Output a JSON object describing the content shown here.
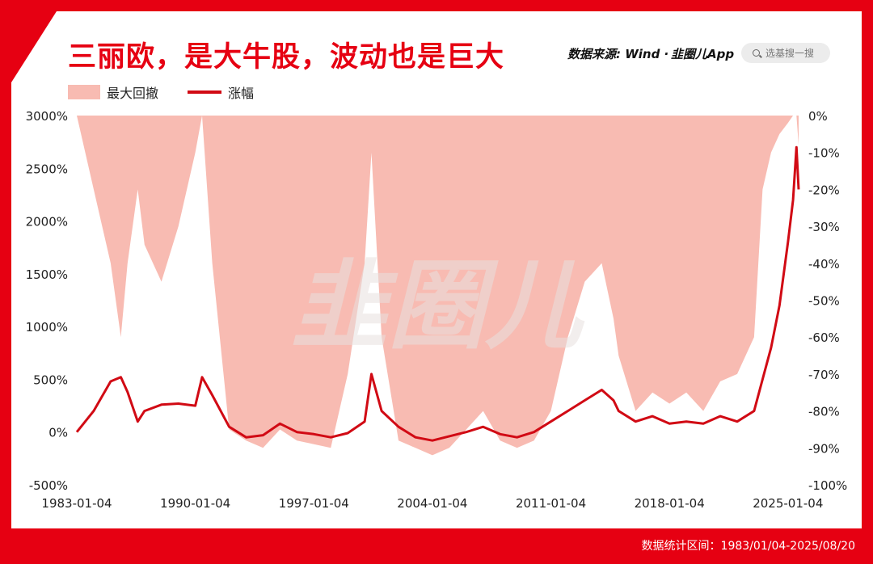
{
  "header": {
    "title": "三丽欧，是大牛股，波动也是巨大",
    "source": "数据来源: Wind ·",
    "brand": "韭圈儿App",
    "search_placeholder": "选基搜一搜"
  },
  "footer": {
    "range_text": "数据统计区间：1983/01/04-2025/08/20"
  },
  "watermark": "韭圈儿",
  "colors": {
    "brand_red": "#E60012",
    "line": "#D10A14",
    "area": "#F8BBB2",
    "watermark": "#E8E0DE"
  },
  "icons": {
    "search": "search-icon"
  },
  "chart_data": {
    "type": "line",
    "legend": [
      "最大回撤",
      "涨幅"
    ],
    "legend_position": "top-left",
    "grid": false,
    "x_ticks": [
      "1983-01-04",
      "1990-01-04",
      "1997-01-04",
      "2004-01-04",
      "2011-01-04",
      "2018-01-04",
      "2025-01-04"
    ],
    "y_left": {
      "ticks": [
        "3000%",
        "2500%",
        "2000%",
        "1500%",
        "1000%",
        "500%",
        "0%",
        "-500%"
      ],
      "lim": [
        -500,
        3000
      ]
    },
    "y_right": {
      "ticks": [
        "0%",
        "-10%",
        "-20%",
        "-30%",
        "-40%",
        "-50%",
        "-60%",
        "-70%",
        "-80%",
        "-90%",
        "-100%"
      ],
      "lim": [
        -100,
        0
      ]
    },
    "x": [
      1983.0,
      1984.0,
      1985.0,
      1985.6,
      1986.0,
      1986.6,
      1987.0,
      1988.0,
      1989.0,
      1990.0,
      1990.4,
      1991.0,
      1992.0,
      1993.0,
      1994.0,
      1995.0,
      1996.0,
      1997.0,
      1998.0,
      1999.0,
      2000.0,
      2000.4,
      2001.0,
      2002.0,
      2003.0,
      2004.0,
      2005.0,
      2006.0,
      2007.0,
      2008.0,
      2009.0,
      2010.0,
      2011.0,
      2012.0,
      2013.0,
      2014.0,
      2014.7,
      2015.0,
      2016.0,
      2017.0,
      2018.0,
      2019.0,
      2020.0,
      2021.0,
      2022.0,
      2023.0,
      2023.5,
      2024.0,
      2024.5,
      2025.0,
      2025.3,
      2025.5,
      2025.63
    ],
    "series": [
      {
        "name": "涨幅",
        "axis": "left",
        "values": [
          0,
          200,
          480,
          520,
          380,
          100,
          200,
          260,
          270,
          250,
          520,
          350,
          50,
          -50,
          -30,
          80,
          0,
          -20,
          -50,
          -10,
          100,
          550,
          200,
          50,
          -50,
          -80,
          -40,
          0,
          50,
          -20,
          -50,
          0,
          100,
          200,
          300,
          400,
          300,
          200,
          100,
          150,
          80,
          100,
          80,
          150,
          100,
          200,
          500,
          800,
          1200,
          1800,
          2200,
          2700,
          2300
        ]
      },
      {
        "name": "最大回撤",
        "axis": "right",
        "values": [
          0,
          -20,
          -40,
          -60,
          -40,
          -20,
          -35,
          -45,
          -30,
          -10,
          0,
          -40,
          -85,
          -88,
          -90,
          -85,
          -88,
          -89,
          -90,
          -70,
          -40,
          -10,
          -60,
          -88,
          -90,
          -92,
          -90,
          -85,
          -80,
          -88,
          -90,
          -88,
          -80,
          -60,
          -45,
          -40,
          -55,
          -65,
          -80,
          -75,
          -78,
          -75,
          -80,
          -72,
          -70,
          -60,
          -20,
          -10,
          -5,
          -2,
          0,
          0,
          -8
        ]
      }
    ]
  }
}
